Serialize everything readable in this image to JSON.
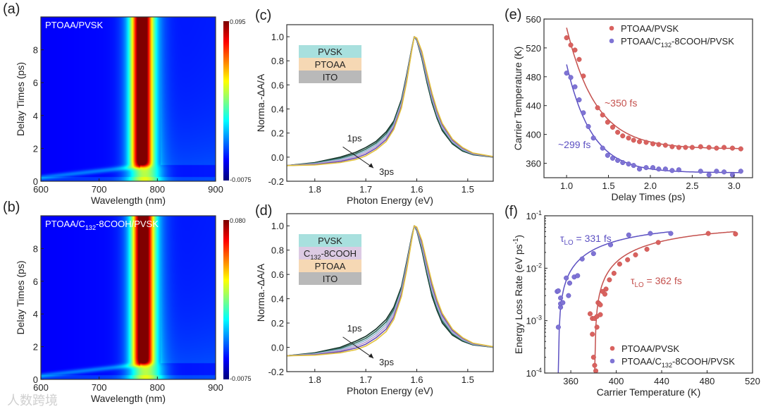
{
  "watermark": "人数跨境",
  "chart_data": [
    {
      "id": "a",
      "panel_label": "(a)",
      "type": "heatmap",
      "title": "PTOAA/PVSK",
      "xlabel": "Wavelength (nm)",
      "ylabel": "Delay Times (ps)",
      "xlim": [
        600,
        900
      ],
      "ylim": [
        0,
        10
      ],
      "x_ticks": [
        600,
        700,
        800,
        900
      ],
      "x_tick_labels": [
        "600",
        "700",
        "800",
        "900"
      ],
      "y_ticks": [
        0,
        2,
        4,
        6,
        8
      ],
      "y_tick_labels": [
        "0",
        "2",
        "4",
        "6",
        "8"
      ],
      "colorbar": {
        "min": -0.0075,
        "max": 0.095,
        "min_label": "-0.0075",
        "max_label": "0.095",
        "colormap": "jet"
      },
      "features": {
        "band_center_nm": 773,
        "onset_ps": 1.0
      }
    },
    {
      "id": "b",
      "panel_label": "(b)",
      "type": "heatmap",
      "title": {
        "pre": "PTOAA/C",
        "sub": "132",
        "post": "-8COOH/PVSK"
      },
      "xlabel": "Wavelength (nm)",
      "ylabel": "Delay Times (ps)",
      "xlim": [
        600,
        900
      ],
      "ylim": [
        0,
        10
      ],
      "x_ticks": [
        600,
        700,
        800,
        900
      ],
      "x_tick_labels": [
        "600",
        "700",
        "800",
        "900"
      ],
      "y_ticks": [
        0,
        2,
        4,
        6,
        8
      ],
      "y_tick_labels": [
        "0",
        "2",
        "4",
        "6",
        "8"
      ],
      "colorbar": {
        "min": -0.0075,
        "max": 0.08,
        "min_label": "-0.0075",
        "max_label": "0.080",
        "colormap": "jet"
      },
      "features": {
        "band_center_nm": 775,
        "onset_ps": 1.0
      }
    },
    {
      "id": "c",
      "panel_label": "(c)",
      "type": "line",
      "xlabel": "Photon Energy (eV)",
      "ylabel": "Norma.-ΔA/A",
      "xlim": [
        1.855,
        1.45
      ],
      "ylim": [
        -0.2,
        1.1
      ],
      "x_ticks": [
        1.8,
        1.7,
        1.6,
        1.5
      ],
      "x_tick_labels": [
        "1.8",
        "1.7",
        "1.6",
        "1.5"
      ],
      "y_ticks": [
        -0.2,
        0,
        0.2,
        0.4,
        0.6,
        0.8,
        1.0
      ],
      "y_tick_labels": [
        "-0.2",
        "0.0",
        "0.2",
        "0.4",
        "0.6",
        "0.8",
        "1.0"
      ],
      "stack_legend": [
        {
          "label": "PVSK",
          "color": "#a8e0de"
        },
        {
          "label": "PTOAA",
          "color": "#f6d8b4"
        },
        {
          "label": "ITO",
          "color": "#b9b9b9"
        }
      ],
      "annotations": {
        "start": "1ps",
        "end": "3ps"
      },
      "x": [
        1.855,
        1.8,
        1.75,
        1.72,
        1.7,
        1.68,
        1.66,
        1.645,
        1.63,
        1.62,
        1.61,
        1.605,
        1.6,
        1.59,
        1.58,
        1.57,
        1.56,
        1.55,
        1.53,
        1.51,
        1.49,
        1.45
      ],
      "series": [
        {
          "name": "1ps",
          "values": [
            -0.07,
            -0.045,
            0.0,
            0.04,
            0.08,
            0.13,
            0.21,
            0.3,
            0.48,
            0.68,
            0.9,
            1.0,
            0.97,
            0.82,
            0.62,
            0.45,
            0.32,
            0.22,
            0.11,
            0.05,
            0.02,
            0.0
          ]
        },
        {
          "name": "3ps",
          "values": [
            -0.07,
            -0.065,
            -0.045,
            -0.02,
            0.01,
            0.06,
            0.13,
            0.23,
            0.41,
            0.62,
            0.88,
            1.0,
            0.99,
            0.88,
            0.7,
            0.53,
            0.39,
            0.28,
            0.15,
            0.08,
            0.035,
            0.005
          ]
        }
      ],
      "curve_colors": [
        "#16332a",
        "#2e6a5a",
        "#8fb5cf",
        "#bda0d2",
        "#6b4fb3",
        "#e2c23c"
      ]
    },
    {
      "id": "d",
      "panel_label": "(d)",
      "type": "line",
      "xlabel": "Photon Energy (eV)",
      "ylabel": "Norma.-ΔA/A",
      "xlim": [
        1.855,
        1.45
      ],
      "ylim": [
        -0.2,
        1.1
      ],
      "x_ticks": [
        1.8,
        1.7,
        1.6,
        1.5
      ],
      "x_tick_labels": [
        "1.8",
        "1.7",
        "1.6",
        "1.5"
      ],
      "y_ticks": [
        -0.2,
        0,
        0.2,
        0.4,
        0.6,
        0.8,
        1.0
      ],
      "y_tick_labels": [
        "-0.2",
        "0.0",
        "0.2",
        "0.4",
        "0.6",
        "0.8",
        "1.0"
      ],
      "stack_legend": [
        {
          "label": "PVSK",
          "color": "#a8e0de"
        },
        {
          "label": {
            "pre": "C",
            "sub": "132",
            "post": "-8COOH"
          },
          "color": "#dccae3"
        },
        {
          "label": "PTOAA",
          "color": "#f6d8b4"
        },
        {
          "label": "ITO",
          "color": "#b9b9b9"
        }
      ],
      "annotations": {
        "start": "1ps",
        "end": "3ps"
      },
      "x": [
        1.855,
        1.8,
        1.75,
        1.72,
        1.7,
        1.68,
        1.66,
        1.645,
        1.63,
        1.62,
        1.61,
        1.605,
        1.6,
        1.59,
        1.58,
        1.57,
        1.56,
        1.55,
        1.53,
        1.51,
        1.49,
        1.45
      ],
      "series": [
        {
          "name": "1ps",
          "values": [
            -0.07,
            -0.045,
            0.0,
            0.05,
            0.09,
            0.15,
            0.23,
            0.33,
            0.5,
            0.7,
            0.91,
            1.0,
            0.96,
            0.8,
            0.6,
            0.42,
            0.3,
            0.2,
            0.1,
            0.05,
            0.02,
            0.0
          ]
        },
        {
          "name": "3ps",
          "values": [
            -0.07,
            -0.065,
            -0.045,
            -0.02,
            0.01,
            0.06,
            0.13,
            0.23,
            0.42,
            0.63,
            0.88,
            1.0,
            0.99,
            0.88,
            0.7,
            0.53,
            0.39,
            0.28,
            0.15,
            0.08,
            0.035,
            0.005
          ]
        }
      ],
      "curve_colors": [
        "#16332a",
        "#2e6a5a",
        "#8fb5cf",
        "#bda0d2",
        "#6b4fb3",
        "#e2c23c"
      ]
    },
    {
      "id": "e",
      "panel_label": "(e)",
      "type": "scatter",
      "xlabel": "Delay Times (ps)",
      "ylabel": "Carrier Temperature (K)",
      "xlim": [
        0.73,
        3.22
      ],
      "ylim": [
        340,
        560
      ],
      "x_ticks": [
        1.0,
        1.5,
        2.0,
        2.5,
        3.0
      ],
      "x_tick_labels": [
        "1.0",
        "1.5",
        "2.0",
        "2.5",
        "3.0"
      ],
      "y_ticks": [
        360,
        400,
        440,
        480,
        520,
        560
      ],
      "y_tick_labels": [
        "360",
        "400",
        "440",
        "480",
        "520",
        "560"
      ],
      "legend_position": "top-right",
      "series": [
        {
          "name": "PTOAA/PVSK",
          "color": "#d9625f",
          "line_color": "#c4504d",
          "annotation": "~350 fs",
          "x": [
            1.0,
            1.05,
            1.1,
            1.15,
            1.2,
            1.37,
            1.43,
            1.49,
            1.55,
            1.61,
            1.67,
            1.74,
            1.8,
            1.87,
            1.95,
            2.03,
            2.1,
            2.18,
            2.26,
            2.34,
            2.42,
            2.5,
            2.6,
            2.7,
            2.79,
            2.88,
            2.98,
            3.08
          ],
          "y": [
            534,
            524,
            517,
            504,
            481,
            437,
            427,
            417,
            410,
            403,
            398,
            395,
            392,
            390,
            389,
            387,
            386,
            385,
            383,
            382,
            382,
            382,
            383,
            382,
            381,
            382,
            381,
            380
          ],
          "fit": {
            "model": "y0 + A*exp(-(t-t0)/tau)",
            "y0": 380,
            "A": 168,
            "t0": 1.0,
            "tau": 0.35,
            "range": [
              1.0,
              3.1
            ]
          }
        },
        {
          "name": {
            "pre": "PTOAA/C",
            "sub": "132",
            "post": "-8COOH/PVSK"
          },
          "color": "#7f74d4",
          "line_color": "#5c50c2",
          "annotation": "~299 fs",
          "x": [
            1.0,
            1.05,
            1.1,
            1.15,
            1.2,
            1.26,
            1.32,
            1.43,
            1.49,
            1.55,
            1.61,
            1.67,
            1.74,
            1.8,
            1.87,
            1.95,
            2.03,
            2.1,
            2.18,
            2.26,
            2.34,
            2.6,
            2.7,
            2.79,
            2.88,
            2.98,
            3.08
          ],
          "y": [
            485,
            479,
            466,
            448,
            430,
            411,
            395,
            381,
            371,
            367,
            364,
            361,
            359,
            357,
            352,
            354,
            354,
            352,
            352,
            350,
            351,
            349,
            344,
            349,
            348,
            344,
            349
          ],
          "fit": {
            "model": "y0 + A*exp(-(t-t0)/tau)",
            "y0": 347,
            "A": 150,
            "t0": 1.0,
            "tau": 0.299,
            "range": [
              1.0,
              3.1
            ]
          }
        }
      ]
    },
    {
      "id": "f",
      "panel_label": "(f)",
      "type": "scatter",
      "xlabel": "Carrier Temperature (K)",
      "ylabel": {
        "pre": "Energy Loss Rate (eV ps",
        "sup": "-1",
        "post": ")"
      },
      "xlim": [
        337,
        520
      ],
      "ylim": [
        0.0001,
        0.1
      ],
      "yscale": "log",
      "x_ticks": [
        360,
        400,
        440,
        480,
        520
      ],
      "x_tick_labels": [
        "360",
        "400",
        "440",
        "480",
        "520"
      ],
      "y_ticks": [
        0.0001,
        0.001,
        0.01,
        0.1
      ],
      "y_tick_labels": [
        {
          "base": "10",
          "exp": "-4"
        },
        {
          "base": "10",
          "exp": "-3"
        },
        {
          "base": "10",
          "exp": "-2"
        },
        {
          "base": "10",
          "exp": "-1"
        }
      ],
      "legend_position": "bottom-right",
      "series": [
        {
          "name": "PTOAA/PVSK",
          "color": "#d9625f",
          "line_color": "#c4504d",
          "annotation": {
            "pre": "τ",
            "sub": "LO",
            "post": " = 362 fs"
          },
          "x": [
            377,
            379,
            379,
            380,
            381,
            381,
            382,
            383,
            383,
            384,
            385,
            386,
            386,
            388,
            390,
            391,
            394,
            398,
            403,
            410,
            417,
            427,
            437,
            481,
            505
          ],
          "y": [
            0.00135,
            0.0011,
            0.00055,
            0.0002,
            0.0011,
            0.00014,
            0.00011,
            0.0012,
            0.00075,
            0.0022,
            0.0021,
            0.002,
            0.0013,
            0.0036,
            0.0032,
            0.004,
            0.006,
            0.008,
            0.012,
            0.0145,
            0.018,
            0.023,
            0.031,
            0.046,
            0.045
          ],
          "fit": {
            "model": "rmax*(1-exp(-(T-T0)/w))",
            "rmax": 0.065,
            "T0": 381,
            "w": 85,
            "range": [
              381,
              505
            ]
          }
        },
        {
          "name": {
            "pre": "PTOAA/C",
            "sub": "132",
            "post": "-8COOH/PVSK"
          },
          "color": "#7f74d4",
          "line_color": "#5c50c2",
          "annotation": {
            "pre": "τ",
            "sub": "LO",
            "post": " = 331 fs"
          },
          "x": [
            348,
            349,
            349,
            351,
            351,
            351,
            353,
            356,
            358,
            359,
            363,
            366,
            370,
            380,
            395,
            411,
            430,
            448
          ],
          "y": [
            0.0036,
            0.0037,
            0.00075,
            0.0027,
            0.0018,
            0.0021,
            0.0022,
            0.0065,
            0.003,
            0.0052,
            0.0068,
            0.0072,
            0.015,
            0.019,
            0.028,
            0.043,
            0.046,
            0.046
          ],
          "fit": {
            "model": "rmax*(1-exp(-(T-T0)/w))",
            "rmax": 0.07,
            "T0": 349,
            "w": 80,
            "range": [
              349,
              448
            ]
          }
        }
      ]
    }
  ]
}
